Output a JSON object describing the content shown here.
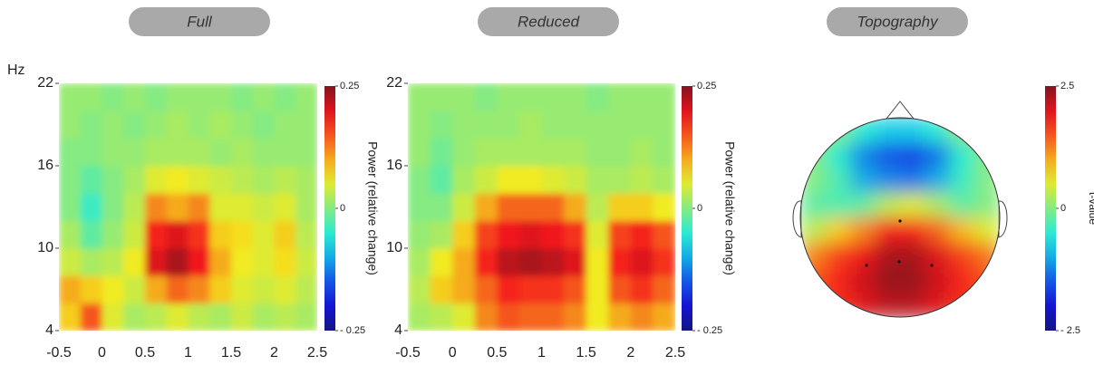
{
  "chart_data": [
    {
      "type": "heatmap",
      "title": "Full",
      "ylabel": "Hz",
      "colormap": "jet",
      "xbins": [
        -0.5,
        -0.25,
        0,
        0.25,
        0.5,
        0.75,
        1,
        1.25,
        1.5,
        1.75,
        2,
        2.25,
        2.5
      ],
      "ybins": [
        4,
        6,
        8,
        10,
        12,
        14,
        16,
        18,
        20,
        22
      ],
      "values": [
        [
          0.08,
          0.15,
          0.05,
          0.02,
          0.03,
          0.05,
          0.03,
          0.02,
          0.04,
          0.02,
          0.03,
          0.02
        ],
        [
          0.1,
          0.08,
          0.06,
          0.04,
          0.1,
          0.14,
          0.12,
          0.08,
          0.05,
          0.04,
          0.05,
          0.03
        ],
        [
          0.04,
          0.02,
          0.03,
          0.06,
          0.2,
          0.23,
          0.19,
          0.1,
          0.06,
          0.05,
          0.07,
          0.04
        ],
        [
          0.02,
          -0.02,
          0.01,
          0.04,
          0.18,
          0.2,
          0.17,
          0.08,
          0.07,
          0.05,
          0.08,
          0.03
        ],
        [
          0.0,
          -0.04,
          0.0,
          0.03,
          0.12,
          0.1,
          0.12,
          0.05,
          0.05,
          0.04,
          0.05,
          0.02
        ],
        [
          0.0,
          -0.02,
          0.0,
          0.02,
          0.05,
          0.06,
          0.05,
          0.04,
          0.03,
          0.02,
          0.03,
          0.02
        ],
        [
          0.0,
          0.0,
          0.01,
          0.01,
          0.02,
          0.02,
          0.02,
          0.01,
          0.02,
          0.01,
          0.01,
          0.01
        ],
        [
          0.01,
          0.0,
          0.01,
          0.0,
          0.01,
          0.02,
          0.01,
          0.02,
          0.01,
          0.0,
          0.01,
          0.01
        ],
        [
          0.01,
          0.01,
          0.0,
          0.01,
          0.0,
          0.01,
          0.01,
          0.01,
          0.0,
          0.01,
          0.0,
          0.01
        ]
      ],
      "xlim": [
        -0.5,
        2.5
      ],
      "xticks": [
        -0.5,
        0,
        0.5,
        1,
        1.5,
        2,
        2.5
      ],
      "ylim": [
        4,
        22
      ],
      "yticks": [
        4,
        10,
        16,
        22
      ],
      "clim": [
        -0.25,
        0.25
      ],
      "cticks": [
        0.25,
        0,
        {
          "value": -0.25,
          "label": "- 0.25"
        }
      ],
      "clabel": "Power (relative change)"
    },
    {
      "type": "heatmap",
      "title": "Reduced",
      "colormap": "jet",
      "xbins": [
        -0.5,
        -0.25,
        0,
        0.25,
        0.5,
        0.75,
        1,
        1.25,
        1.5,
        1.75,
        2,
        2.25,
        2.5
      ],
      "ybins": [
        4,
        6,
        8,
        10,
        12,
        14,
        16,
        18,
        20,
        22
      ],
      "values": [
        [
          0.02,
          0.03,
          0.05,
          0.12,
          0.15,
          0.14,
          0.14,
          0.12,
          0.06,
          0.1,
          0.12,
          0.1
        ],
        [
          0.03,
          0.08,
          0.1,
          0.14,
          0.18,
          0.17,
          0.17,
          0.15,
          0.06,
          0.15,
          0.17,
          0.14
        ],
        [
          0.02,
          0.06,
          0.1,
          0.18,
          0.22,
          0.23,
          0.22,
          0.2,
          0.06,
          0.18,
          0.2,
          0.17
        ],
        [
          0.01,
          0.02,
          0.08,
          0.16,
          0.19,
          0.2,
          0.19,
          0.17,
          0.05,
          0.16,
          0.18,
          0.15
        ],
        [
          0.0,
          0.0,
          0.04,
          0.1,
          0.14,
          0.14,
          0.14,
          0.1,
          0.03,
          0.08,
          0.08,
          0.06
        ],
        [
          0.0,
          -0.02,
          0.02,
          0.04,
          0.06,
          0.06,
          0.05,
          0.04,
          0.02,
          0.02,
          0.03,
          0.02
        ],
        [
          0.01,
          -0.01,
          0.01,
          0.02,
          0.02,
          0.02,
          0.02,
          0.02,
          0.01,
          0.01,
          0.02,
          0.01
        ],
        [
          0.01,
          0.0,
          0.01,
          0.01,
          0.01,
          0.02,
          0.01,
          0.01,
          0.01,
          0.01,
          0.01,
          0.01
        ],
        [
          0.01,
          0.01,
          0.01,
          0.0,
          0.01,
          0.01,
          0.01,
          0.01,
          0.0,
          0.01,
          0.01,
          0.01
        ]
      ],
      "xlim": [
        -0.5,
        2.5
      ],
      "xticks": [
        -0.5,
        0,
        0.5,
        1,
        1.5,
        2,
        2.5
      ],
      "ylim": [
        4,
        22
      ],
      "yticks": [
        4,
        10,
        16,
        22
      ],
      "clim": [
        -0.25,
        0.25
      ],
      "cticks": [
        0.25,
        0,
        {
          "value": -0.25,
          "label": "- 0.25"
        }
      ],
      "clabel": "Power (relative change)"
    },
    {
      "type": "topography",
      "title": "Topography",
      "colormap": "jet",
      "values": [
        [
          0,
          0,
          -0.5,
          -0.8,
          -0.8,
          -0.5,
          0,
          0
        ],
        [
          0,
          -0.5,
          -1.2,
          -1.5,
          -1.6,
          -1.3,
          -0.5,
          0
        ],
        [
          0,
          -0.3,
          -1,
          -1.2,
          -1.3,
          -1,
          -0.4,
          0
        ],
        [
          -0.2,
          -0.3,
          -0.2,
          0.3,
          0.5,
          0.2,
          -0.2,
          0
        ],
        [
          0.3,
          0.8,
          1.2,
          1.8,
          1.8,
          1.4,
          0.9,
          0.5
        ],
        [
          1.2,
          1.6,
          1.9,
          2.3,
          2.3,
          2.0,
          1.6,
          1.3
        ],
        [
          1.5,
          1.8,
          2.1,
          2.4,
          2.4,
          2.1,
          1.8,
          1.5
        ],
        [
          1.5,
          1.7,
          2.0,
          2.2,
          2.2,
          2.0,
          1.7,
          1.5
        ]
      ],
      "clim": [
        -2.5,
        2.5
      ],
      "cticks": [
        2.5,
        0,
        {
          "value": -2.5,
          "label": "- 2.5"
        }
      ],
      "clabel": "t-value"
    }
  ]
}
